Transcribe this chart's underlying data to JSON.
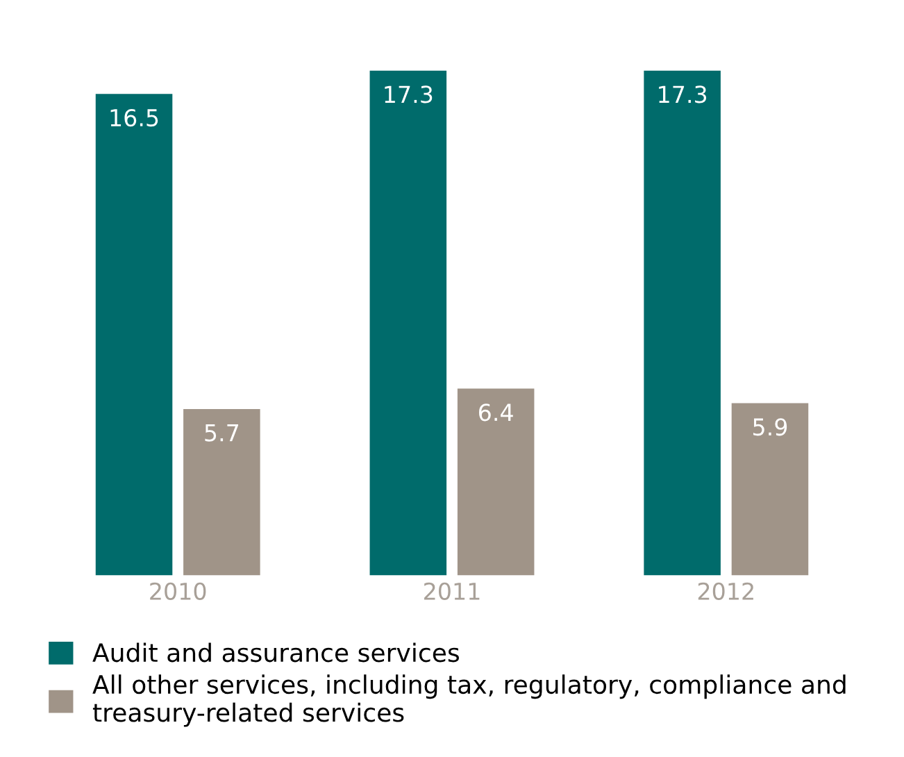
{
  "chart_data": {
    "type": "bar",
    "categories": [
      "2010",
      "2011",
      "2012"
    ],
    "series": [
      {
        "name": "Audit and assurance services",
        "color": "#006b6b",
        "values": [
          16.5,
          17.3,
          17.3
        ]
      },
      {
        "name": "All other services, including tax, regulatory, compliance and treasury-related services",
        "color": "#a09488",
        "values": [
          5.7,
          6.4,
          5.9
        ]
      }
    ],
    "data_labels": true,
    "legend": "bottom",
    "grid": false
  }
}
